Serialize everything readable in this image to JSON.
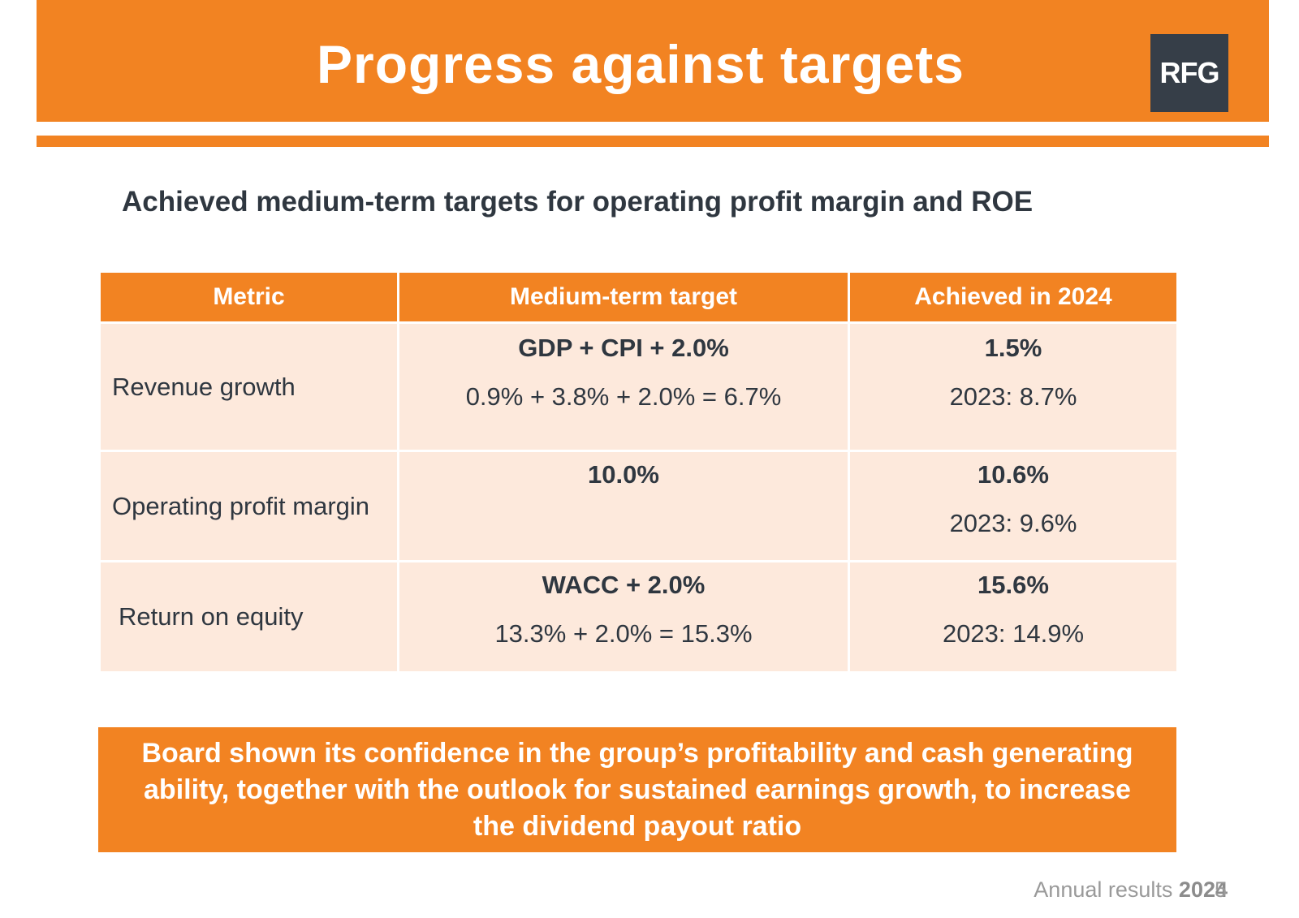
{
  "slide": {
    "title": "Progress against targets",
    "logo_text": "RFG",
    "subtitle": "Achieved medium-term targets for operating profit margin and ROE"
  },
  "table": {
    "headers": [
      "Metric",
      "Medium-term target",
      "Achieved in 2024"
    ],
    "rows": [
      {
        "metric": "Revenue growth",
        "target_main": "GDP + CPI + 2.0%",
        "target_detail": "0.9% + 3.8% + 2.0% = 6.7%",
        "achieved_main": "1.5%",
        "achieved_prior": "2023: 8.7%"
      },
      {
        "metric": "Operating profit margin",
        "target_main": "10.0%",
        "target_detail": "",
        "achieved_main": "10.6%",
        "achieved_prior": "2023: 9.6%"
      },
      {
        "metric": "Return on equity",
        "target_main": "WACC + 2.0%",
        "target_detail": "13.3% + 2.0% = 15.3%",
        "achieved_main": "15.6%",
        "achieved_prior": "2023: 14.9%"
      }
    ]
  },
  "callout": {
    "text": "Board shown its confidence in the group’s profitability and cash generating ability, together with the outlook for sustained earnings growth, to increase the dividend payout ratio"
  },
  "footer": {
    "label": "Annual results",
    "year": "2024",
    "page_number": "5"
  },
  "colors": {
    "accent": "#f28322",
    "row_fill": "#fde9dc",
    "text_dark": "#2f3740",
    "logo_bg": "#363e48"
  }
}
